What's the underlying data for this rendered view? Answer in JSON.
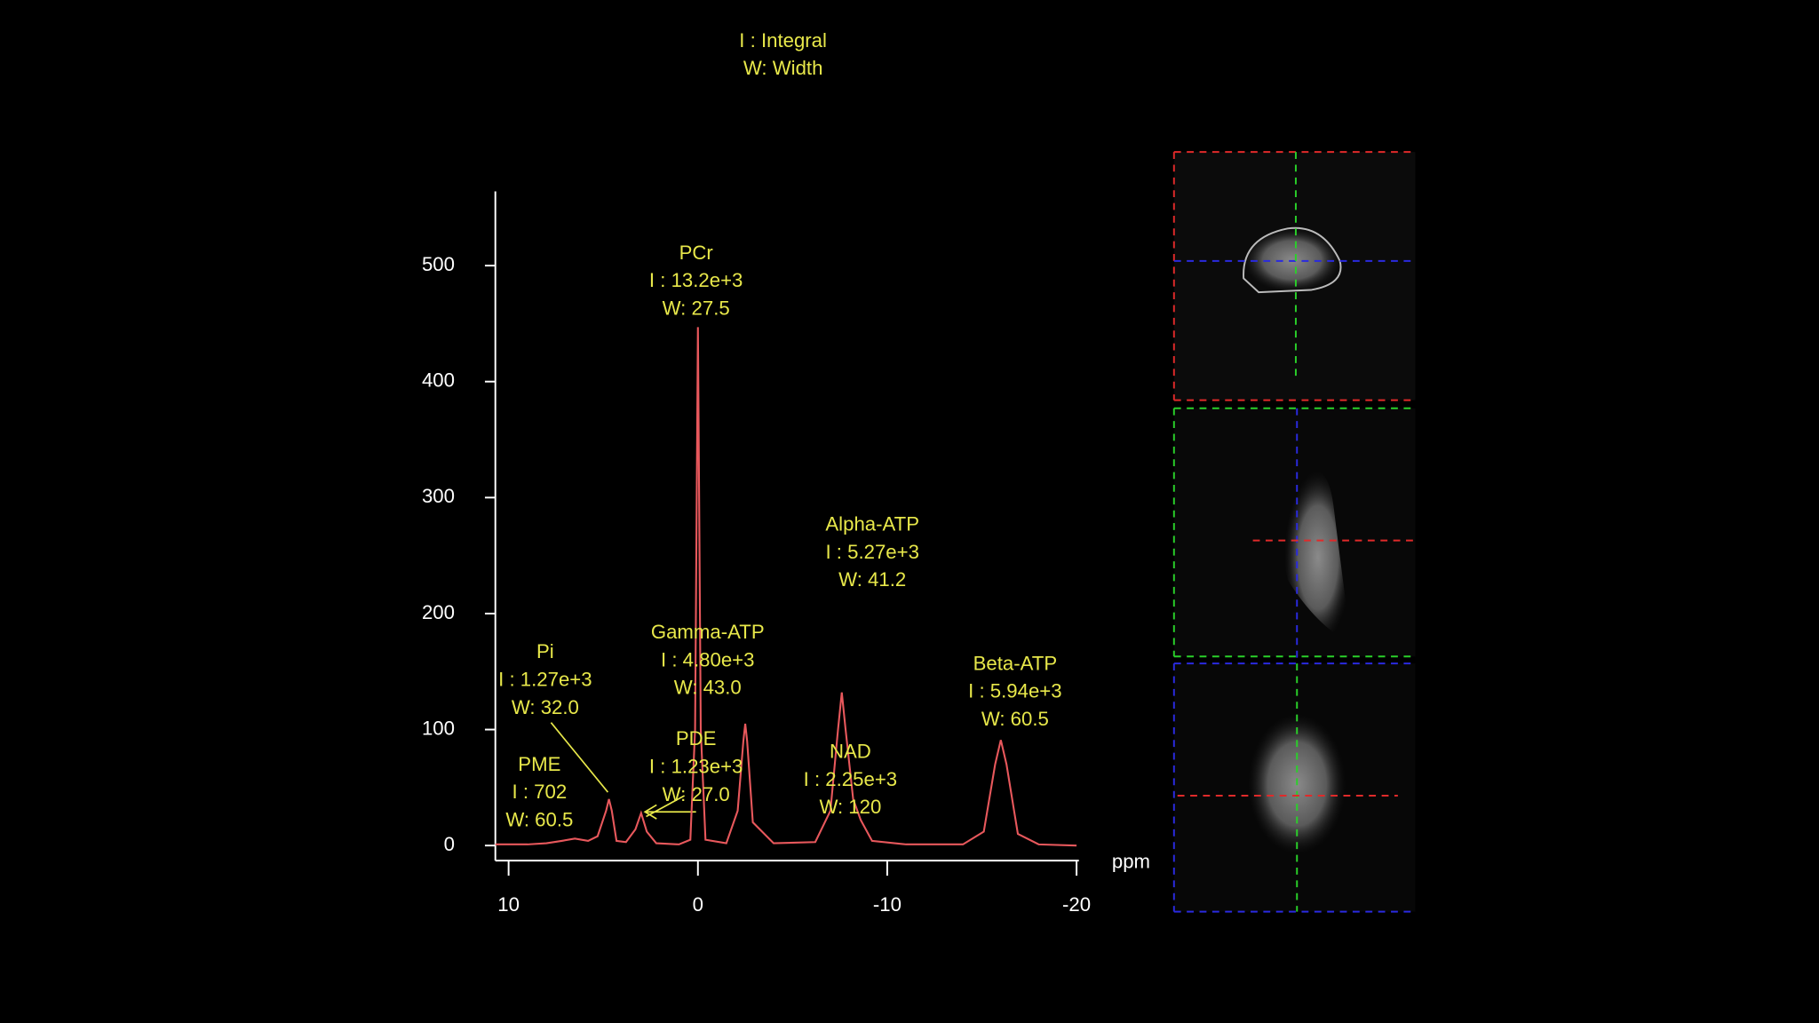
{
  "chart_data": {
    "type": "line",
    "legend_lines": [
      "I : Integral",
      "W: Width"
    ],
    "x_label": "ppm",
    "xlim": [
      10.7,
      -20
    ],
    "xticks": [
      10,
      0,
      -10,
      -20
    ],
    "ylim": [
      0,
      564
    ],
    "yticks": [
      0,
      100,
      200,
      300,
      400,
      500
    ],
    "x": [
      10.7,
      9,
      8,
      7.2,
      6.5,
      5.8,
      5.3,
      4.85,
      4.7,
      4.55,
      4.3,
      3.8,
      3.3,
      3.0,
      2.7,
      2.2,
      1.0,
      0.4,
      0.15,
      0,
      -0.15,
      -0.4,
      -1.5,
      -2.1,
      -2.4,
      -2.5,
      -2.6,
      -2.9,
      -4,
      -6.2,
      -7.0,
      -7.4,
      -7.6,
      -7.8,
      -8.2,
      -8.6,
      -9.2,
      -11,
      -14,
      -15.1,
      -15.7,
      -16.0,
      -16.3,
      -16.9,
      -18,
      -20
    ],
    "series": [
      {
        "color": "#e8585c",
        "values": [
          1,
          1,
          2,
          4,
          6,
          4,
          8,
          30,
          40,
          30,
          4,
          3,
          14,
          28,
          12,
          2,
          1,
          5,
          100,
          447,
          100,
          5,
          2,
          30,
          90,
          105,
          90,
          20,
          2,
          3,
          30,
          100,
          132,
          100,
          40,
          22,
          4,
          1,
          1,
          12,
          70,
          91,
          70,
          10,
          1,
          0
        ]
      }
    ],
    "annotations": [
      {
        "name": "PCr",
        "integral": "I : 13.2e+3",
        "width": "W: 27.5"
      },
      {
        "name": "Alpha-ATP",
        "integral": "I : 5.27e+3",
        "width": "W: 41.2"
      },
      {
        "name": "Gamma-ATP",
        "integral": "I : 4.80e+3",
        "width": "W: 43.0"
      },
      {
        "name": "Beta-ATP",
        "integral": "I : 5.94e+3",
        "width": "W: 60.5"
      },
      {
        "name": "Pi",
        "integral": "I : 1.27e+3",
        "width": "W: 32.0"
      },
      {
        "name": "PME",
        "integral": "I : 702",
        "width": "W: 60.5"
      },
      {
        "name": "PDE",
        "integral": "I : 1.23e+3",
        "width": "W: 27.0"
      },
      {
        "name": "NAD",
        "integral": "I : 2.25e+3",
        "width": "W: 120"
      }
    ]
  }
}
